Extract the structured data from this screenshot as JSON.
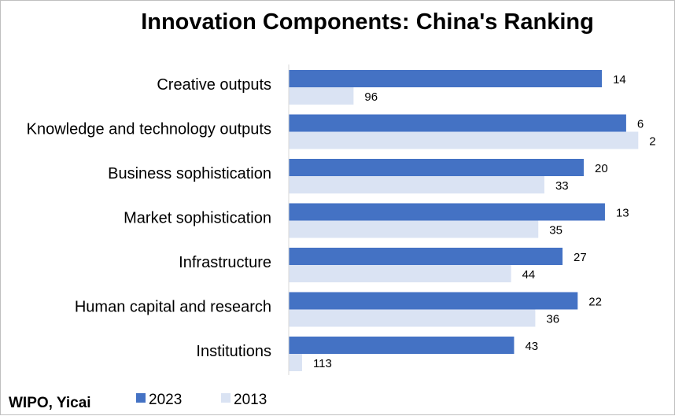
{
  "chart_data": {
    "type": "bar",
    "orientation": "horizontal",
    "title": "Innovation Components: China's Ranking",
    "categories": [
      "Creative outputs",
      "Knowledge and technology outputs",
      "Business sophistication",
      "Market sophistication",
      "Infrastructure",
      "Human capital and research",
      "Institutions"
    ],
    "series": [
      {
        "name": "2023",
        "values": [
          14,
          6,
          20,
          13,
          27,
          22,
          43
        ],
        "color": "#4472c4"
      },
      {
        "name": "2013",
        "values": [
          96,
          2,
          33,
          35,
          44,
          36,
          113
        ],
        "color": "#dae3f3"
      }
    ],
    "value_meaning": "rank (bar extends further for better rank)",
    "grid": false,
    "legend_position": "bottom",
    "source": "WIPO, Yicai"
  }
}
